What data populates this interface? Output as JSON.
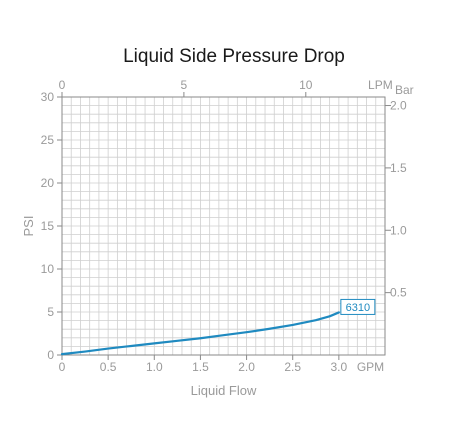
{
  "chart_data": {
    "type": "line",
    "title": "Liquid Side Pressure Drop",
    "xlabel": "Liquid Flow",
    "ylabel": "PSI",
    "x_unit": "GPM",
    "x_top_unit": "LPM",
    "y_right_unit": "Bar",
    "xlim": [
      0,
      3.5
    ],
    "ylim": [
      0,
      30
    ],
    "x_top_lim": [
      0,
      13.2489
    ],
    "y_right_lim": [
      0,
      2.0684
    ],
    "x_ticks": [
      0,
      0.5,
      1.0,
      1.5,
      2.0,
      2.5,
      3.0
    ],
    "x_tick_labels": [
      "0",
      "0.5",
      "1.0",
      "1.5",
      "2.0",
      "2.5",
      "3.0"
    ],
    "x_top_ticks": [
      0,
      5,
      10
    ],
    "x_top_tick_labels": [
      "0",
      "5",
      "10"
    ],
    "y_ticks": [
      0,
      5,
      10,
      15,
      20,
      25,
      30
    ],
    "y_tick_labels": [
      "0",
      "5",
      "10",
      "15",
      "20",
      "25",
      "30"
    ],
    "y_right_ticks": [
      0.5,
      1.0,
      1.5,
      2.0
    ],
    "y_right_tick_labels": [
      "0.5",
      "1.0",
      "1.5",
      "2.0"
    ],
    "grid": true,
    "series": [
      {
        "name": "6310",
        "color": "#1f8ac0",
        "x": [
          0,
          0.25,
          0.5,
          0.75,
          1.0,
          1.25,
          1.5,
          1.75,
          2.0,
          2.25,
          2.5,
          2.75,
          2.9,
          3.0
        ],
        "y": [
          0.1,
          0.4,
          0.75,
          1.05,
          1.35,
          1.65,
          1.95,
          2.3,
          2.65,
          3.05,
          3.5,
          4.05,
          4.5,
          4.95
        ]
      }
    ]
  }
}
